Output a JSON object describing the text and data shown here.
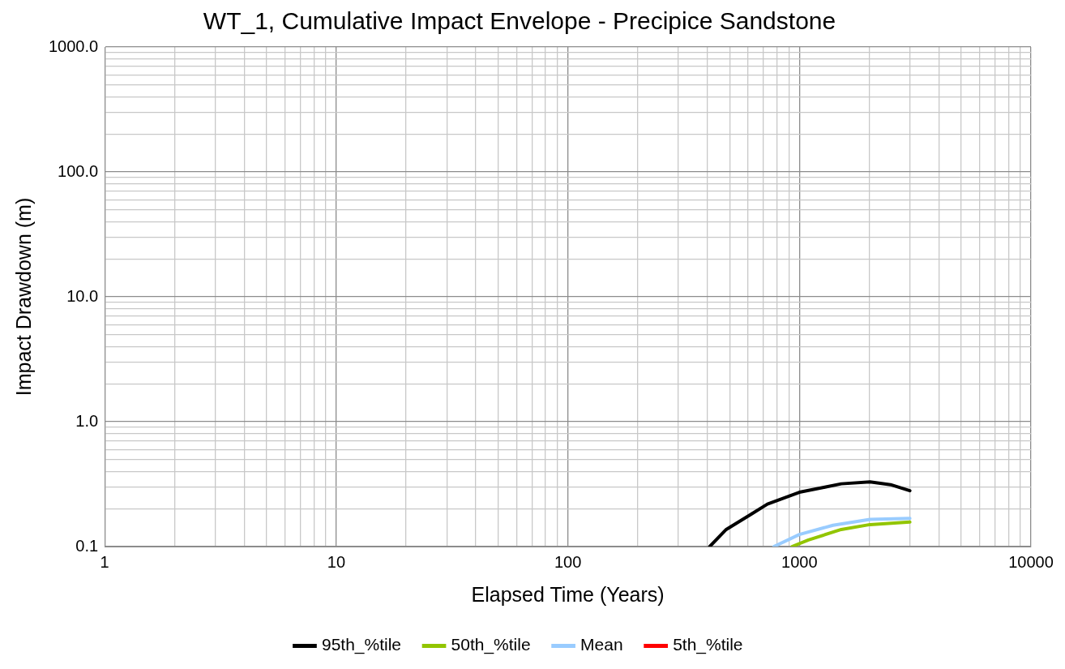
{
  "chart_data": {
    "type": "line",
    "title": "WT_1, Cumulative Impact Envelope - Precipice Sandstone",
    "xlabel": "Elapsed Time (Years)",
    "ylabel": "Impact Drawdown (m)",
    "log": "xy",
    "grid": true,
    "legend": "bottom",
    "marker": "none",
    "line_style": "solid",
    "xlim": [
      1,
      10000
    ],
    "ylim": [
      0.1,
      1000
    ],
    "xticks": [
      1,
      {
        "value": 2,
        "label": null
      },
      {
        "value": 3,
        "label": null
      },
      {
        "value": 4,
        "label": null
      },
      {
        "value": 5,
        "label": null
      },
      {
        "value": 6,
        "label": null
      },
      {
        "value": 7,
        "label": null
      },
      {
        "value": 8,
        "label": null
      },
      {
        "value": 9,
        "label": null
      },
      10,
      {
        "value": 20,
        "label": null
      },
      {
        "value": 30,
        "label": null
      },
      {
        "value": 40,
        "label": null
      },
      {
        "value": 50,
        "label": null
      },
      {
        "value": 60,
        "label": null
      },
      {
        "value": 70,
        "label": null
      },
      {
        "value": 80,
        "label": null
      },
      {
        "value": 90,
        "label": null
      },
      100,
      {
        "value": 200,
        "label": null
      },
      {
        "value": 300,
        "label": null
      },
      {
        "value": 400,
        "label": null
      },
      {
        "value": 500,
        "label": null
      },
      {
        "value": 600,
        "label": null
      },
      {
        "value": 700,
        "label": null
      },
      {
        "value": 800,
        "label": null
      },
      {
        "value": 900,
        "label": null
      },
      1000,
      {
        "value": 2000,
        "label": null
      },
      {
        "value": 3000,
        "label": null
      },
      {
        "value": 4000,
        "label": null
      },
      {
        "value": 5000,
        "label": null
      },
      {
        "value": 6000,
        "label": null
      },
      {
        "value": 7000,
        "label": null
      },
      {
        "value": 8000,
        "label": null
      },
      {
        "value": 9000,
        "label": null
      },
      10000
    ],
    "yticks": [
      {
        "value": 0.1,
        "label": "0.1"
      },
      {
        "value": 0.2,
        "label": null
      },
      {
        "value": 0.3,
        "label": null
      },
      {
        "value": 0.4,
        "label": null
      },
      {
        "value": 0.5,
        "label": null
      },
      {
        "value": 0.6,
        "label": null
      },
      {
        "value": 0.7,
        "label": null
      },
      {
        "value": 0.8,
        "label": null
      },
      {
        "value": 0.9,
        "label": null
      },
      {
        "value": 1,
        "label": "1.0"
      },
      {
        "value": 2,
        "label": null
      },
      {
        "value": 3,
        "label": null
      },
      {
        "value": 4,
        "label": null
      },
      {
        "value": 5,
        "label": null
      },
      {
        "value": 6,
        "label": null
      },
      {
        "value": 7,
        "label": null
      },
      {
        "value": 8,
        "label": null
      },
      {
        "value": 9,
        "label": null
      },
      {
        "value": 10,
        "label": "10.0"
      },
      {
        "value": 20,
        "label": null
      },
      {
        "value": 30,
        "label": null
      },
      {
        "value": 40,
        "label": null
      },
      {
        "value": 50,
        "label": null
      },
      {
        "value": 60,
        "label": null
      },
      {
        "value": 70,
        "label": null
      },
      {
        "value": 80,
        "label": null
      },
      {
        "value": 90,
        "label": null
      },
      {
        "value": 100,
        "label": "100.0"
      },
      {
        "value": 200,
        "label": null
      },
      {
        "value": 300,
        "label": null
      },
      {
        "value": 400,
        "label": null
      },
      {
        "value": 500,
        "label": null
      },
      {
        "value": 600,
        "label": null
      },
      {
        "value": 700,
        "label": null
      },
      {
        "value": 800,
        "label": null
      },
      {
        "value": 900,
        "label": null
      },
      {
        "value": 1000,
        "label": "1000.0"
      }
    ],
    "series": [
      {
        "name": "95th_%tile",
        "color": "#000000",
        "x": [
          410,
          483,
          618,
          728,
          1000,
          1288,
          1517,
          2018,
          2475,
          3000
        ],
        "values": [
          0.1,
          0.137,
          0.181,
          0.219,
          0.272,
          0.299,
          0.318,
          0.329,
          0.313,
          0.28
        ]
      },
      {
        "name": "50th_%tile",
        "color": "#92c500",
        "x": [
          929,
          1094,
          1517,
          2018,
          3000
        ],
        "values": [
          0.1,
          0.113,
          0.137,
          0.15,
          0.157
        ]
      },
      {
        "name": "Mean",
        "color": "#99ccff",
        "x": [
          776,
          1000,
          1397,
          2018,
          3000
        ],
        "values": [
          0.1,
          0.125,
          0.148,
          0.165,
          0.168
        ]
      },
      {
        "name": "5th_%tile",
        "color": "#ff0000"
      }
    ]
  }
}
